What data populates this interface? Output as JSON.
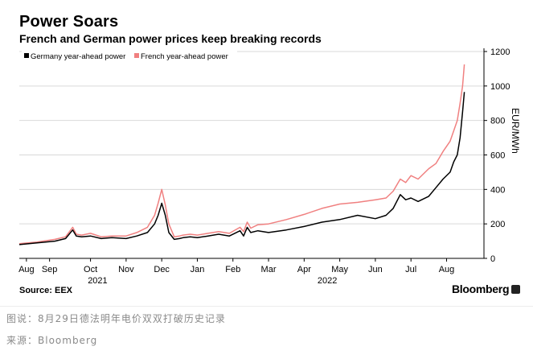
{
  "title": "Power Soars",
  "subtitle": "French and German power prices keep breaking records",
  "source": "Source: EEX",
  "brand": "Bloomberg",
  "caption_line1": "图说：8月29日德法明年电价双双打破历史记录",
  "caption_line2": "来源：Bloomberg",
  "colors": {
    "germany": "#000000",
    "france": "#f08080",
    "grid": "#d9d9d9"
  },
  "chart_data": {
    "type": "line",
    "ylabel": "EUR/MWh",
    "ylim": [
      0,
      1200
    ],
    "yticks": [
      0,
      200,
      400,
      600,
      800,
      1000,
      1200
    ],
    "xlim": [
      0,
      13.05
    ],
    "xticks": [
      {
        "label": "Aug",
        "x": 0.2
      },
      {
        "label": "Sep",
        "x": 0.85
      },
      {
        "label": "Oct",
        "x": 2.0
      },
      {
        "label": "Nov",
        "x": 3.0
      },
      {
        "label": "Dec",
        "x": 4.0
      },
      {
        "label": "Jan",
        "x": 5.0
      },
      {
        "label": "Feb",
        "x": 6.0
      },
      {
        "label": "Mar",
        "x": 7.0
      },
      {
        "label": "Apr",
        "x": 8.0
      },
      {
        "label": "May",
        "x": 9.0
      },
      {
        "label": "Jun",
        "x": 10.0
      },
      {
        "label": "Jul",
        "x": 11.0
      },
      {
        "label": "Aug",
        "x": 12.0
      }
    ],
    "year_labels": [
      {
        "label": "2021",
        "x": 2.2
      },
      {
        "label": "2022",
        "x": 8.65
      }
    ],
    "legend": [
      "Germany year-ahead power",
      "French year-ahead power"
    ],
    "series": [
      {
        "name": "Germany year-ahead power",
        "x": [
          0,
          0.5,
          1.0,
          1.3,
          1.5,
          1.6,
          1.75,
          2.0,
          2.3,
          2.6,
          3.0,
          3.3,
          3.6,
          3.8,
          3.9,
          4.0,
          4.1,
          4.2,
          4.35,
          4.5,
          4.6,
          4.8,
          5.0,
          5.3,
          5.6,
          5.9,
          6.2,
          6.3,
          6.4,
          6.5,
          6.7,
          7.0,
          7.5,
          8.0,
          8.5,
          9.0,
          9.5,
          10.0,
          10.3,
          10.5,
          10.7,
          10.85,
          11.0,
          11.2,
          11.5,
          11.7,
          11.9,
          12.1,
          12.2,
          12.3,
          12.38,
          12.45,
          12.5
        ],
        "values": [
          80,
          90,
          100,
          115,
          165,
          130,
          125,
          130,
          115,
          120,
          115,
          130,
          150,
          200,
          250,
          320,
          250,
          150,
          110,
          115,
          120,
          125,
          120,
          130,
          140,
          130,
          160,
          130,
          180,
          150,
          160,
          150,
          165,
          185,
          210,
          225,
          250,
          230,
          250,
          290,
          370,
          340,
          350,
          330,
          360,
          410,
          460,
          500,
          560,
          600,
          700,
          850,
          965
        ]
      },
      {
        "name": "French year-ahead power",
        "x": [
          0,
          0.5,
          1.0,
          1.3,
          1.5,
          1.6,
          1.75,
          2.0,
          2.3,
          2.6,
          3.0,
          3.3,
          3.6,
          3.8,
          3.9,
          4.0,
          4.1,
          4.2,
          4.35,
          4.5,
          4.6,
          4.8,
          5.0,
          5.3,
          5.6,
          5.9,
          6.2,
          6.3,
          6.4,
          6.5,
          6.7,
          7.0,
          7.5,
          8.0,
          8.5,
          9.0,
          9.5,
          10.0,
          10.3,
          10.5,
          10.7,
          10.85,
          11.0,
          11.2,
          11.5,
          11.7,
          11.9,
          12.1,
          12.2,
          12.3,
          12.38,
          12.45,
          12.5
        ],
        "values": [
          85,
          95,
          110,
          125,
          180,
          140,
          135,
          145,
          125,
          130,
          130,
          150,
          180,
          250,
          320,
          400,
          310,
          200,
          125,
          130,
          135,
          140,
          135,
          145,
          155,
          145,
          180,
          155,
          210,
          175,
          195,
          200,
          225,
          255,
          290,
          315,
          325,
          340,
          350,
          390,
          460,
          440,
          480,
          460,
          520,
          550,
          620,
          680,
          740,
          800,
          900,
          1000,
          1125
        ]
      }
    ]
  }
}
